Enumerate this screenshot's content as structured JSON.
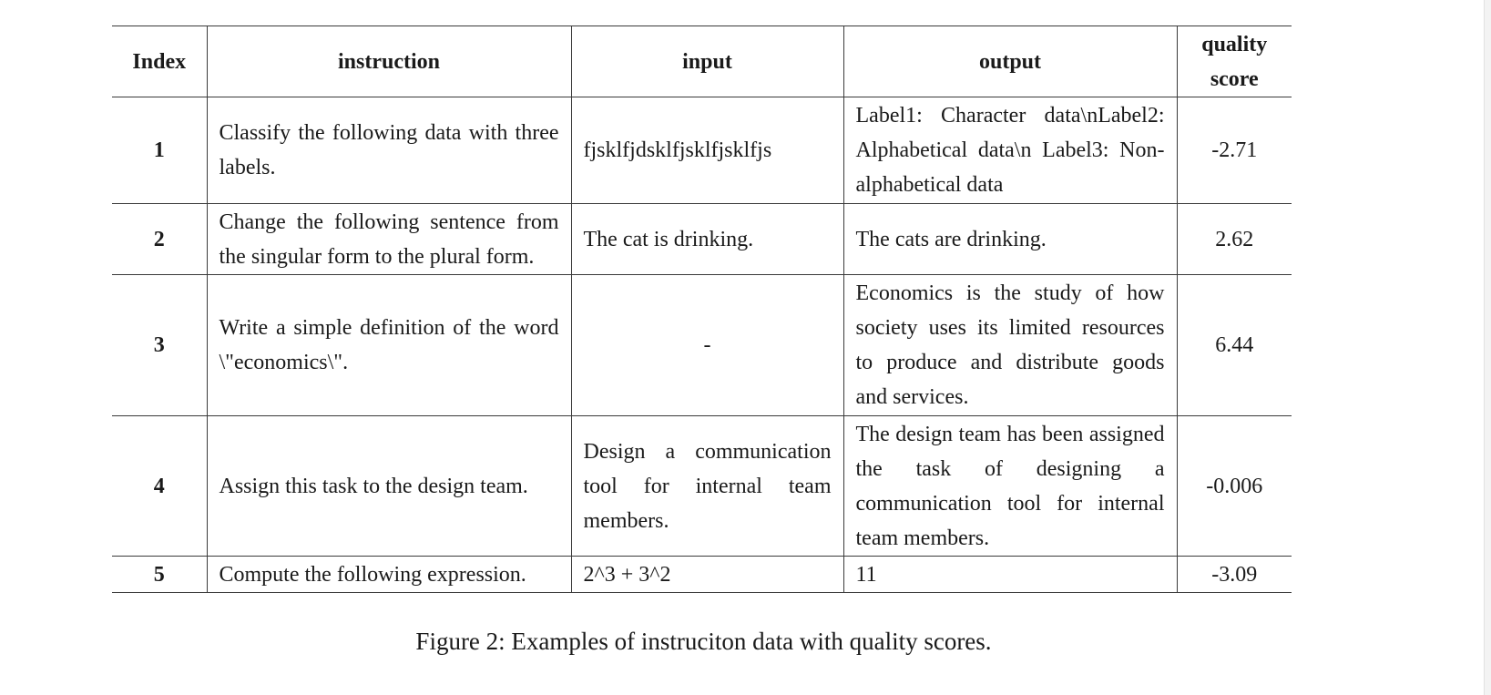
{
  "table": {
    "headers": [
      "Index",
      "instruction",
      "input",
      "output",
      "quality score"
    ],
    "rows": [
      {
        "index": "1",
        "instruction": "Classify the following data with three labels.",
        "input": "fjsklfjdsklfjsklfjsklfjs",
        "output": "Label1: Character data\\nLabel2: Alphabetical data\\n Label3: Non-alphabetical data",
        "score": "-2.71"
      },
      {
        "index": "2",
        "instruction": "Change the following sentence from the singular form to the plural form.",
        "input": "The cat is drinking.",
        "output": "The cats are drinking.",
        "score": "2.62"
      },
      {
        "index": "3",
        "instruction": "Write a simple definition of the word \\\"economics\\\".",
        "input": "-",
        "output": "Economics is the study of how society uses its limited resources to produce and distribute goods and services.",
        "score": "6.44"
      },
      {
        "index": "4",
        "instruction": "Assign this task to the design team.",
        "input": "Design a communication tool for internal team members.",
        "output": "The design team has been assigned the task of designing a communication tool for internal team members.",
        "score": "-0.006"
      },
      {
        "index": "5",
        "instruction": "Compute the following expression.",
        "input": "2^3 + 3^2",
        "output": "11",
        "score": "-3.09"
      }
    ]
  },
  "caption": "Figure 2: Examples of instruciton data with quality scores."
}
